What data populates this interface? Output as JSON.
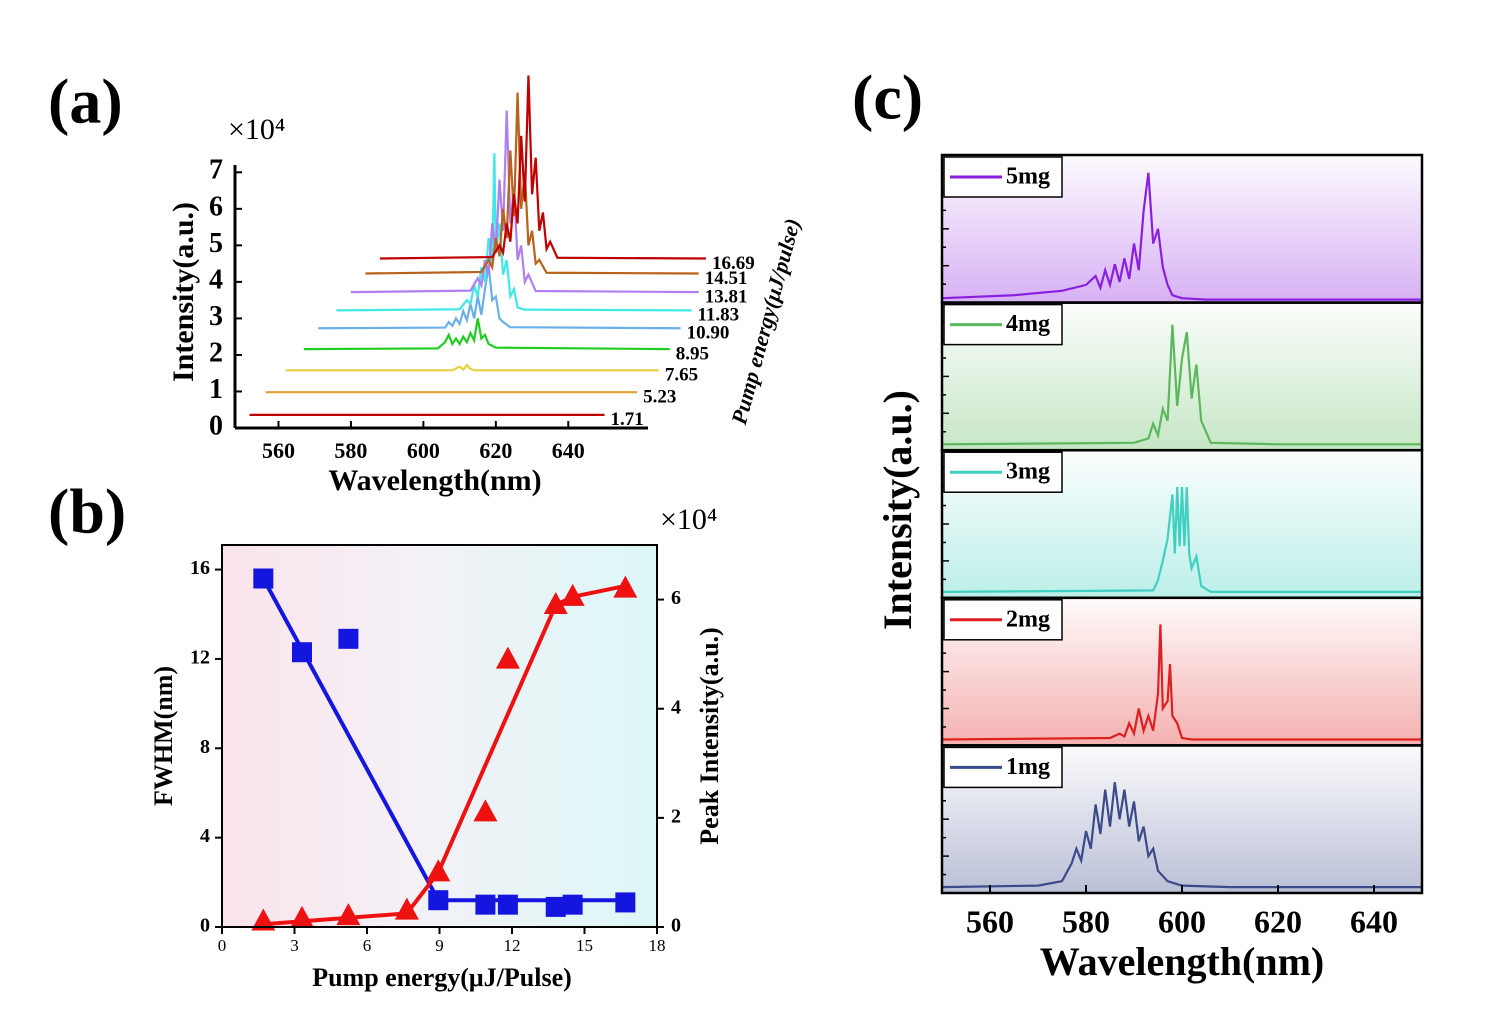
{
  "chart_data": [
    {
      "type": "waterfall",
      "title": "(a)",
      "xlabel": "Wavelength(nm)",
      "ylabel": "Intensity(a.u.)",
      "zlabel": "Pump energy(μJ/pulse)",
      "y_multiplier": "×10⁴",
      "xlim": [
        548,
        662
      ],
      "ylim": [
        0,
        7.2
      ],
      "xticks": [
        560,
        580,
        600,
        620,
        640
      ],
      "yticks": [
        0,
        1,
        2,
        3,
        4,
        5,
        6,
        7
      ],
      "series": [
        {
          "name": "1.71",
          "color": "#c00000",
          "x": [
            552,
            650
          ],
          "values": [
            0.36,
            0.36
          ]
        },
        {
          "name": "5.23",
          "color": "#e0a030",
          "x": [
            556.5,
            659
          ],
          "values": [
            0.98,
            0.98
          ]
        },
        {
          "name": "7.65",
          "color": "#e8d040",
          "x": [
            562,
            608,
            610,
            611,
            612,
            613,
            614,
            665
          ],
          "values": [
            1.58,
            1.58,
            1.68,
            1.6,
            1.72,
            1.62,
            1.58,
            1.58
          ]
        },
        {
          "name": "8.95",
          "color": "#22cc22",
          "x": [
            567,
            604,
            606,
            607,
            608,
            609,
            610,
            611,
            612,
            613,
            614,
            615,
            616,
            617,
            618,
            620,
            668
          ],
          "values": [
            2.16,
            2.18,
            2.35,
            2.55,
            2.3,
            2.45,
            2.3,
            2.5,
            2.35,
            2.6,
            2.4,
            3.0,
            2.45,
            2.55,
            2.3,
            2.2,
            2.16
          ]
        },
        {
          "name": "10.90",
          "color": "#6ab0e8",
          "x": [
            571,
            606,
            607,
            608,
            609,
            610,
            611,
            612,
            613,
            614,
            615,
            616,
            617,
            618,
            619,
            620,
            621,
            622,
            624,
            671
          ],
          "values": [
            2.73,
            2.75,
            2.9,
            2.8,
            3.0,
            2.85,
            3.2,
            2.95,
            3.4,
            3.0,
            3.6,
            3.1,
            3.8,
            4.45,
            3.5,
            3.6,
            3.0,
            2.9,
            2.76,
            2.73
          ]
        },
        {
          "name": "11.83",
          "color": "#40e8e8",
          "x": [
            576,
            610,
            612,
            613,
            614,
            615,
            616,
            617,
            618,
            619,
            619.6,
            620,
            621,
            622,
            623,
            624,
            625,
            626,
            628,
            674
          ],
          "values": [
            3.22,
            3.25,
            3.5,
            3.4,
            3.9,
            3.6,
            4.4,
            4.0,
            5.2,
            4.5,
            7.52,
            4.8,
            5.6,
            4.2,
            4.6,
            3.6,
            3.8,
            3.3,
            3.24,
            3.22
          ]
        },
        {
          "name": "13.81",
          "color": "#b080f0",
          "x": [
            580,
            613,
            615,
            616,
            617,
            618,
            619,
            620,
            621,
            622,
            623,
            624,
            625,
            626,
            627,
            628,
            629,
            631,
            676
          ],
          "values": [
            3.72,
            3.76,
            4.1,
            3.9,
            4.6,
            4.2,
            5.6,
            4.8,
            6.8,
            5.4,
            8.69,
            5.6,
            6.6,
            4.6,
            5.0,
            4.0,
            4.2,
            3.75,
            3.72
          ]
        },
        {
          "name": "14.51",
          "color": "#b8621b",
          "x": [
            584,
            616,
            618,
            619,
            620,
            621,
            622,
            623,
            624,
            625,
            626,
            627,
            628,
            629,
            630,
            631,
            632,
            634,
            676
          ],
          "values": [
            4.23,
            4.27,
            4.6,
            4.4,
            5.2,
            4.7,
            6.0,
            5.2,
            7.6,
            5.8,
            9.18,
            6.0,
            7.0,
            5.0,
            5.4,
            4.5,
            4.6,
            4.25,
            4.23
          ]
        },
        {
          "name": "16.69",
          "color": "#c00000",
          "x": [
            588,
            619,
            621,
            622,
            623,
            624,
            625,
            626,
            627,
            628,
            629,
            630,
            631,
            632,
            633,
            634,
            635,
            637,
            678
          ],
          "values": [
            4.64,
            4.68,
            5.0,
            4.8,
            5.6,
            5.1,
            6.4,
            5.6,
            8.0,
            6.2,
            9.65,
            6.4,
            7.4,
            5.4,
            5.9,
            4.9,
            5.1,
            4.66,
            4.64
          ]
        }
      ]
    },
    {
      "type": "scatter",
      "title": "(b)",
      "xlabel": "Pump energy(μJ/Pulse)",
      "ylabel": "FWHM(nm)",
      "y2label": "Peak Intensity(a.u.)",
      "y2_multiplier": "×10⁴",
      "xlim": [
        0,
        18
      ],
      "ylim": [
        0,
        17.1
      ],
      "y2lim": [
        0,
        7
      ],
      "xticks": [
        0,
        3,
        6,
        9,
        12,
        15,
        18
      ],
      "yticks": [
        0,
        4,
        8,
        12,
        16
      ],
      "y2ticks": [
        0,
        2,
        4,
        6
      ],
      "ytick_color": "#1515e0",
      "series": [
        {
          "color": "#1515e0",
          "marker": "square",
          "x": [
            1.71,
            3.31,
            5.23,
            8.95,
            10.9,
            11.83,
            13.81,
            14.51,
            16.69
          ],
          "values": [
            15.6,
            12.3,
            12.9,
            1.2,
            1.0,
            1.0,
            0.9,
            1.0,
            1.1
          ]
        },
        {
          "color": "#1515e0",
          "marker": "none",
          "x": [
            1.71,
            8.95,
            16.69
          ],
          "values": [
            15.6,
            1.2,
            1.2
          ]
        },
        {
          "color": "#ee1111",
          "marker": "triangle",
          "axis": "y2",
          "x": [
            1.71,
            3.31,
            5.23,
            7.65,
            8.95,
            10.9,
            11.83,
            13.81,
            14.51,
            16.69
          ],
          "values": [
            0.1,
            0.15,
            0.2,
            0.3,
            1.0,
            2.1,
            4.9,
            5.9,
            6.05,
            6.2
          ]
        },
        {
          "color": "#ee1111",
          "marker": "none",
          "axis": "y2",
          "x": [
            1.71,
            7.65,
            8.95,
            13.81,
            14.51,
            16.69
          ],
          "values": [
            0.05,
            0.25,
            1.0,
            5.9,
            6.05,
            6.25
          ]
        }
      ]
    },
    {
      "type": "line",
      "title": "(c)",
      "xlabel": "Wavelength(nm)",
      "ylabel": "Intensity(a.u.)",
      "xlim": [
        550,
        650
      ],
      "ylim": [
        0,
        1
      ],
      "xticks": [
        560,
        580,
        600,
        620,
        640
      ],
      "series": [
        {
          "name": "5mg",
          "color": "#8b1fe0",
          "x": [
            550,
            565,
            575,
            580,
            582,
            583,
            584,
            585,
            586,
            587,
            588,
            589,
            590,
            591,
            592,
            593,
            594,
            595,
            596,
            597,
            598,
            600,
            605,
            650
          ],
          "values": [
            0.03,
            0.05,
            0.08,
            0.12,
            0.18,
            0.1,
            0.22,
            0.12,
            0.26,
            0.14,
            0.3,
            0.16,
            0.4,
            0.22,
            0.62,
            0.88,
            0.4,
            0.5,
            0.24,
            0.12,
            0.05,
            0.03,
            0.02,
            0.02
          ]
        },
        {
          "name": "4mg",
          "color": "#5cb85c",
          "x": [
            550,
            590,
            593,
            594,
            595,
            596,
            597,
            598,
            599,
            600,
            601,
            602,
            603,
            604,
            606,
            620,
            650
          ],
          "values": [
            0.04,
            0.05,
            0.08,
            0.18,
            0.1,
            0.28,
            0.2,
            0.85,
            0.3,
            0.62,
            0.8,
            0.35,
            0.58,
            0.2,
            0.05,
            0.04,
            0.04
          ]
        },
        {
          "name": "3mg",
          "color": "#40d0c0",
          "x": [
            550,
            594,
            595,
            596,
            597,
            598,
            598.5,
            599,
            599.5,
            600,
            600.5,
            601,
            601.5,
            602,
            603,
            604,
            606,
            650
          ],
          "values": [
            0.04,
            0.05,
            0.12,
            0.25,
            0.4,
            0.7,
            0.3,
            0.75,
            0.35,
            0.75,
            0.35,
            0.75,
            0.3,
            0.2,
            0.28,
            0.08,
            0.04,
            0.04
          ]
        },
        {
          "name": "2mg",
          "color": "#e02020",
          "x": [
            550,
            585,
            587,
            588,
            589,
            590,
            591,
            592,
            593,
            594,
            595,
            595.5,
            596,
            597,
            597.5,
            598,
            599,
            600,
            602,
            650
          ],
          "values": [
            0.04,
            0.05,
            0.08,
            0.06,
            0.15,
            0.08,
            0.25,
            0.1,
            0.2,
            0.1,
            0.35,
            0.82,
            0.25,
            0.3,
            0.55,
            0.2,
            0.15,
            0.05,
            0.04,
            0.04
          ]
        },
        {
          "name": "1mg",
          "color": "#3a4a8a",
          "x": [
            550,
            570,
            575,
            577,
            578,
            579,
            580,
            581,
            582,
            583,
            584,
            585,
            586,
            587,
            588,
            589,
            590,
            591,
            592,
            593,
            594,
            595,
            597,
            600,
            610,
            650
          ],
          "values": [
            0.04,
            0.05,
            0.08,
            0.2,
            0.3,
            0.22,
            0.42,
            0.3,
            0.6,
            0.4,
            0.7,
            0.45,
            0.75,
            0.5,
            0.7,
            0.45,
            0.62,
            0.35,
            0.45,
            0.25,
            0.3,
            0.15,
            0.08,
            0.05,
            0.04,
            0.04
          ]
        }
      ]
    }
  ]
}
